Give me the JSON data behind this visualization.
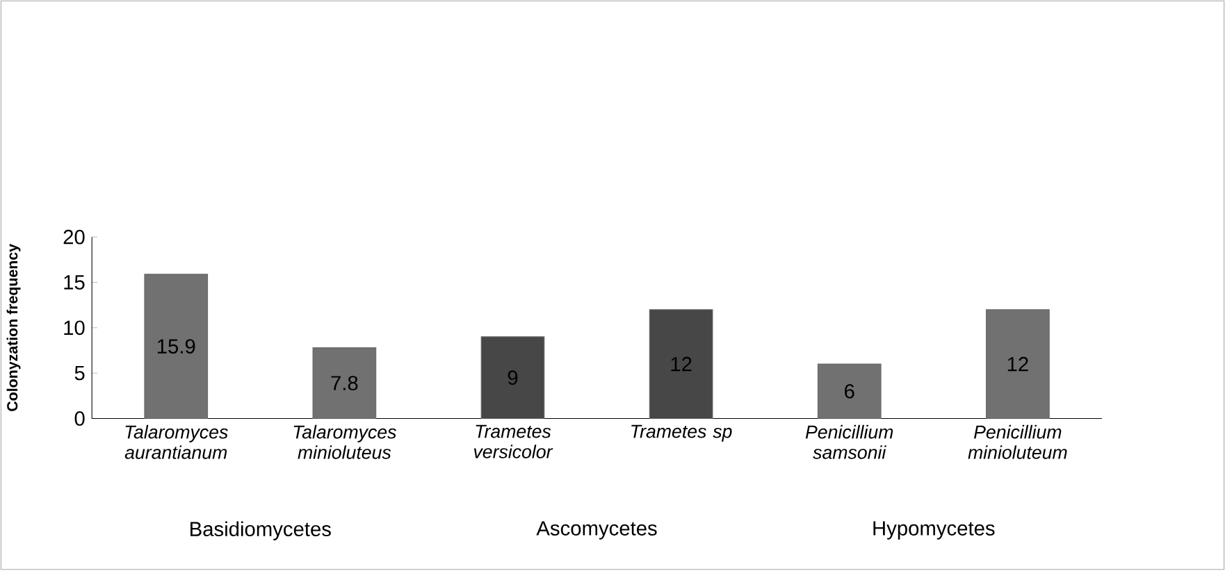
{
  "chart_data": {
    "type": "bar",
    "ylabel": "Colonyzation frequency",
    "categories": [
      "Talaromyces aurantianum",
      "Talaromyces minioluteus",
      "Trametes versicolor",
      "Trametes sp",
      "Penicillium samsonii",
      "Penicillium minioluteum"
    ],
    "values": [
      15.9,
      7.8,
      9,
      12,
      6,
      12
    ],
    "value_labels": [
      "15.9",
      "7.8",
      "9",
      "12",
      "6",
      "12"
    ],
    "colors": [
      "#717171",
      "#717171",
      "#474747",
      "#474747",
      "#717171",
      "#717171"
    ],
    "ylim": [
      0,
      20
    ],
    "yticks": [
      0,
      5,
      10,
      15,
      20
    ],
    "annotations": [
      "Basidiomycetes",
      "Ascomycetes",
      "Hypomycetes"
    ]
  }
}
